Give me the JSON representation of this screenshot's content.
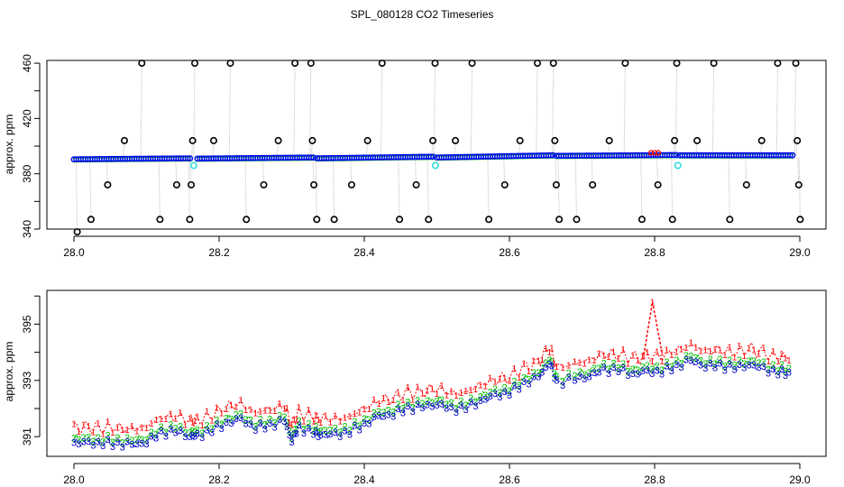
{
  "title": "SPL_080128  CO2 Timeseries",
  "chart_data": [
    {
      "type": "scatter",
      "panel": "top",
      "ylabel": "approx. ppm",
      "xlabel": "",
      "xlim": [
        28.0,
        29.0
      ],
      "ylim": [
        340,
        462
      ],
      "xticks": [
        "28.0",
        "28.2",
        "28.4",
        "28.6",
        "28.8",
        "29.0"
      ],
      "yticks": [
        "340",
        "380",
        "420",
        "460"
      ],
      "yticks_minor": [
        360,
        400,
        440
      ],
      "baseline_segments": [
        {
          "x0": 28.0,
          "x1": 28.16,
          "y0": 390.5,
          "y1": 391.2
        },
        {
          "x0": 28.17,
          "x1": 28.33,
          "y0": 391.0,
          "y1": 391.8
        },
        {
          "x0": 28.335,
          "x1": 28.495,
          "y0": 391.2,
          "y1": 392.4
        },
        {
          "x0": 28.5,
          "x1": 28.66,
          "y0": 391.8,
          "y1": 393.4
        },
        {
          "x0": 28.665,
          "x1": 28.83,
          "y0": 393.0,
          "y1": 393.6
        },
        {
          "x0": 28.835,
          "x1": 28.99,
          "y0": 393.4,
          "y1": 393.4
        }
      ],
      "outliers": [
        {
          "x": 28.003,
          "y": 338
        },
        {
          "x": 28.022,
          "y": 347
        },
        {
          "x": 28.045,
          "y": 372
        },
        {
          "x": 28.068,
          "y": 404
        },
        {
          "x": 28.092,
          "y": 460
        },
        {
          "x": 28.117,
          "y": 347
        },
        {
          "x": 28.14,
          "y": 372
        },
        {
          "x": 28.158,
          "y": 347
        },
        {
          "x": 28.16,
          "y": 372
        },
        {
          "x": 28.162,
          "y": 404
        },
        {
          "x": 28.165,
          "y": 460
        },
        {
          "x": 28.191,
          "y": 404
        },
        {
          "x": 28.214,
          "y": 460
        },
        {
          "x": 28.236,
          "y": 347
        },
        {
          "x": 28.26,
          "y": 372
        },
        {
          "x": 28.28,
          "y": 404
        },
        {
          "x": 28.303,
          "y": 460
        },
        {
          "x": 28.325,
          "y": 460
        },
        {
          "x": 28.327,
          "y": 404
        },
        {
          "x": 28.329,
          "y": 372
        },
        {
          "x": 28.333,
          "y": 347
        },
        {
          "x": 28.357,
          "y": 347
        },
        {
          "x": 28.381,
          "y": 372
        },
        {
          "x": 28.403,
          "y": 404
        },
        {
          "x": 28.423,
          "y": 460
        },
        {
          "x": 28.447,
          "y": 347
        },
        {
          "x": 28.47,
          "y": 372
        },
        {
          "x": 28.487,
          "y": 347
        },
        {
          "x": 28.493,
          "y": 404
        },
        {
          "x": 28.496,
          "y": 460
        },
        {
          "x": 28.524,
          "y": 404
        },
        {
          "x": 28.547,
          "y": 460
        },
        {
          "x": 28.57,
          "y": 347
        },
        {
          "x": 28.592,
          "y": 372
        },
        {
          "x": 28.613,
          "y": 404
        },
        {
          "x": 28.637,
          "y": 460
        },
        {
          "x": 28.659,
          "y": 460
        },
        {
          "x": 28.661,
          "y": 404
        },
        {
          "x": 28.663,
          "y": 372
        },
        {
          "x": 28.667,
          "y": 347
        },
        {
          "x": 28.691,
          "y": 347
        },
        {
          "x": 28.713,
          "y": 372
        },
        {
          "x": 28.736,
          "y": 404
        },
        {
          "x": 28.758,
          "y": 460
        },
        {
          "x": 28.781,
          "y": 347
        },
        {
          "x": 28.803,
          "y": 372
        },
        {
          "x": 28.823,
          "y": 347
        },
        {
          "x": 28.826,
          "y": 404
        },
        {
          "x": 28.829,
          "y": 460
        },
        {
          "x": 28.857,
          "y": 404
        },
        {
          "x": 28.88,
          "y": 460
        },
        {
          "x": 28.902,
          "y": 347
        },
        {
          "x": 28.925,
          "y": 372
        },
        {
          "x": 28.946,
          "y": 404
        },
        {
          "x": 28.968,
          "y": 460
        },
        {
          "x": 28.993,
          "y": 460
        },
        {
          "x": 28.995,
          "y": 404
        },
        {
          "x": 28.997,
          "y": 372
        },
        {
          "x": 28.999,
          "y": 347
        }
      ],
      "cyan_points": [
        {
          "x": 28.165,
          "y": 386
        },
        {
          "x": 28.498,
          "y": 386
        },
        {
          "x": 28.832,
          "y": 386
        }
      ],
      "colors": {
        "baseline": "#0000ff",
        "outlier": "#000000",
        "cyan": "#33dddd",
        "green": "#00bb00",
        "red": "#ff0000",
        "line": "#bdbdbd"
      }
    },
    {
      "type": "line",
      "panel": "bottom",
      "ylabel": "approx. ppm",
      "xlabel": "",
      "xlim": [
        28.0,
        29.0
      ],
      "ylim": [
        390.3,
        396.2
      ],
      "xticks": [
        "28.0",
        "28.2",
        "28.4",
        "28.6",
        "28.8",
        "29.0"
      ],
      "yticks": [
        "391",
        "393",
        "395"
      ],
      "yticks_minor": [
        392,
        394,
        396
      ],
      "series": [
        {
          "label": "1",
          "color": "#ff0000",
          "offset": 0.55
        },
        {
          "label": "2",
          "color": "#00bb00",
          "offset": 0.15
        },
        {
          "label": "3",
          "color": "#0000cc",
          "offset": 0.0
        }
      ],
      "x": [
        28.0,
        28.02,
        28.04,
        28.06,
        28.08,
        28.1,
        28.12,
        28.14,
        28.16,
        28.17,
        28.19,
        28.21,
        28.23,
        28.25,
        28.27,
        28.29,
        28.3,
        28.31,
        28.33,
        28.34,
        28.36,
        28.38,
        28.4,
        28.42,
        28.44,
        28.46,
        28.48,
        28.5,
        28.52,
        28.54,
        28.56,
        28.58,
        28.6,
        28.62,
        28.64,
        28.655,
        28.665,
        28.69,
        28.71,
        28.73,
        28.75,
        28.77,
        28.79,
        28.81,
        28.83,
        28.85,
        28.87,
        28.89,
        28.91,
        28.93,
        28.95,
        28.97,
        28.985
      ],
      "base": [
        390.8,
        390.75,
        390.8,
        390.75,
        390.7,
        390.85,
        391.1,
        391.2,
        391.05,
        391.0,
        391.25,
        391.5,
        391.6,
        391.35,
        391.4,
        391.55,
        390.9,
        391.3,
        391.15,
        391.1,
        391.05,
        391.2,
        391.45,
        391.7,
        391.85,
        392.0,
        392.05,
        392.2,
        391.95,
        392.05,
        392.3,
        392.45,
        392.6,
        392.9,
        393.1,
        393.7,
        392.9,
        393.05,
        393.2,
        393.35,
        393.4,
        393.25,
        393.3,
        393.35,
        393.5,
        393.7,
        393.55,
        393.5,
        393.45,
        393.6,
        393.4,
        393.3,
        393.3
      ],
      "spike": {
        "x": [
          28.785,
          28.797,
          28.81
        ],
        "y": [
          393.9,
          395.8,
          394.0
        ]
      },
      "colors": {
        "bg": "#ffffff"
      }
    }
  ]
}
